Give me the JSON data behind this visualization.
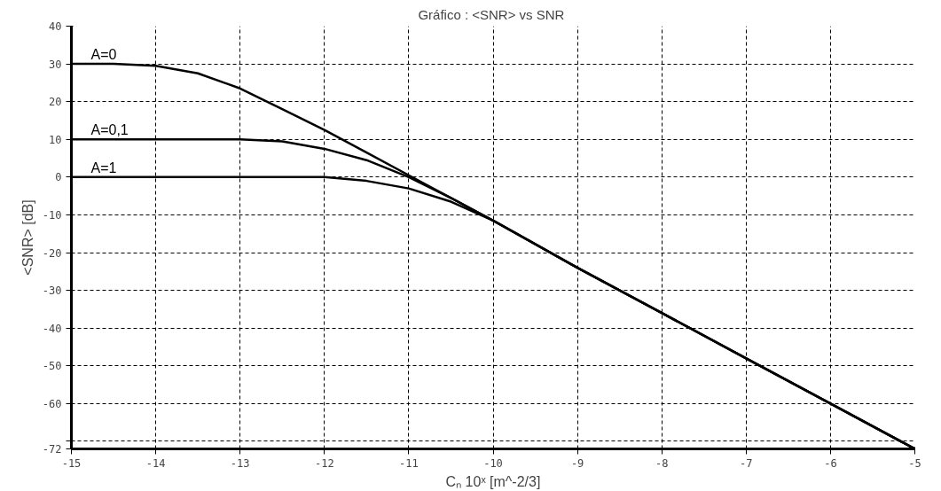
{
  "chart_data": {
    "type": "line",
    "title": "Gráfico :  <SNR> vs SNR",
    "xlabel": "Cₙ 10ˣ [m^-2/3]",
    "ylabel": "<SNR> [dB]",
    "x": [
      -15,
      -14.5,
      -14,
      -13.5,
      -13,
      -12.5,
      -12,
      -11.5,
      -11,
      -10.5,
      -10,
      -9,
      -8,
      -7,
      -6,
      -5
    ],
    "series": [
      {
        "name": "A=0",
        "color": "#000000",
        "values": [
          30,
          30,
          29.5,
          27.5,
          23.5,
          18,
          12.5,
          6.5,
          0.5,
          -5.5,
          -11.5,
          -24,
          -36,
          -48,
          -60,
          -72
        ]
      },
      {
        "name": "A=0,1",
        "color": "#000000",
        "values": [
          10,
          10,
          10,
          10,
          10,
          9.5,
          7.5,
          4.5,
          0,
          -5.5,
          -11.5,
          -24,
          -36,
          -48,
          -60,
          -72
        ]
      },
      {
        "name": "A=1",
        "color": "#000000",
        "values": [
          0,
          0,
          0,
          0,
          0,
          0,
          0,
          -1,
          -3,
          -6.5,
          -11.5,
          -24,
          -36,
          -48,
          -60,
          -72
        ]
      }
    ],
    "xlim": [
      -15,
      -5
    ],
    "xticks": [
      -15,
      -14,
      -13,
      -12,
      -11,
      -10,
      -9,
      -8,
      -7,
      -6,
      -5
    ],
    "ylim": [
      -72,
      40
    ],
    "yticks": [
      -72,
      {
        "value": -70,
        "label": null
      },
      -60,
      -50,
      -40,
      -30,
      -20,
      -10,
      0,
      10,
      20,
      30,
      40
    ],
    "grid": true,
    "marker": "none",
    "line_style": "solid"
  }
}
